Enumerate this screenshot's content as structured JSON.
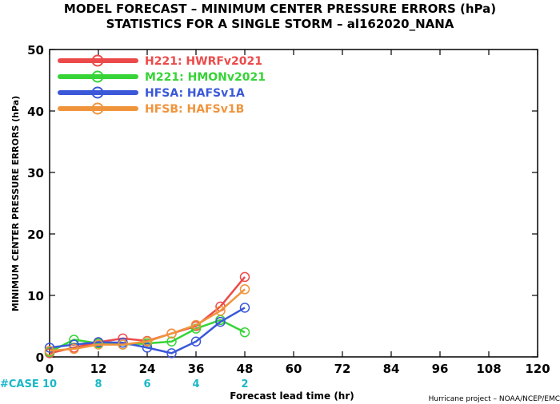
{
  "title": {
    "line1": "MODEL FORECAST – MINIMUM CENTER PRESSURE ERRORS (hPa)",
    "line2": "STATISTICS FOR A SINGLE STORM – al162020_NANA"
  },
  "case_label": "#CASE",
  "credit": "Hurricane project – NOAA/NCEP/EMC",
  "chart_data": {
    "type": "line",
    "title": "MODEL FORECAST – MINIMUM CENTER PRESSURE ERRORS (hPa)",
    "subtitle": "STATISTICS FOR A SINGLE STORM – al162020_NANA",
    "xlabel": "Forecast lead time (hr)",
    "ylabel": "MINIMUM CENTER PRESSURE ERRORS (hPa)",
    "xlim": [
      0,
      120
    ],
    "ylim": [
      0,
      50
    ],
    "xticks": [
      0,
      12,
      24,
      36,
      48,
      60,
      72,
      84,
      96,
      108,
      120
    ],
    "yticks": [
      0,
      10,
      20,
      30,
      40,
      50
    ],
    "grid": false,
    "legend_position": "top-left",
    "case_counts": [
      {
        "x": 0,
        "count": "10"
      },
      {
        "x": 12,
        "count": "8"
      },
      {
        "x": 24,
        "count": "6"
      },
      {
        "x": 36,
        "count": "4"
      },
      {
        "x": 48,
        "count": "2"
      }
    ],
    "series": [
      {
        "name": "H221: HWRFv2021",
        "color": "#ec4a4a",
        "x": [
          0,
          6,
          12,
          18,
          24,
          30,
          36,
          42,
          48
        ],
        "y": [
          0.6,
          1.5,
          2.4,
          3.0,
          2.6,
          3.8,
          5.0,
          8.2,
          13.0
        ]
      },
      {
        "name": "M221: HMONv2021",
        "color": "#36d436",
        "x": [
          0,
          6,
          12,
          18,
          24,
          30,
          36,
          42,
          48
        ],
        "y": [
          0.8,
          2.8,
          2.2,
          2.0,
          2.2,
          2.5,
          4.6,
          6.0,
          4.0
        ]
      },
      {
        "name": "HFSA: HAFSv1A",
        "color": "#3a58d8",
        "x": [
          0,
          6,
          12,
          18,
          24,
          30,
          36,
          42,
          48
        ],
        "y": [
          1.5,
          2.0,
          2.4,
          2.3,
          1.5,
          0.6,
          2.5,
          5.7,
          8.0
        ]
      },
      {
        "name": "HFSB: HAFSv1B",
        "color": "#f0943c",
        "x": [
          0,
          6,
          12,
          18,
          24,
          30,
          36,
          42,
          48
        ],
        "y": [
          1.0,
          1.3,
          2.0,
          2.0,
          2.5,
          3.8,
          5.2,
          7.5,
          11.0
        ]
      }
    ]
  }
}
